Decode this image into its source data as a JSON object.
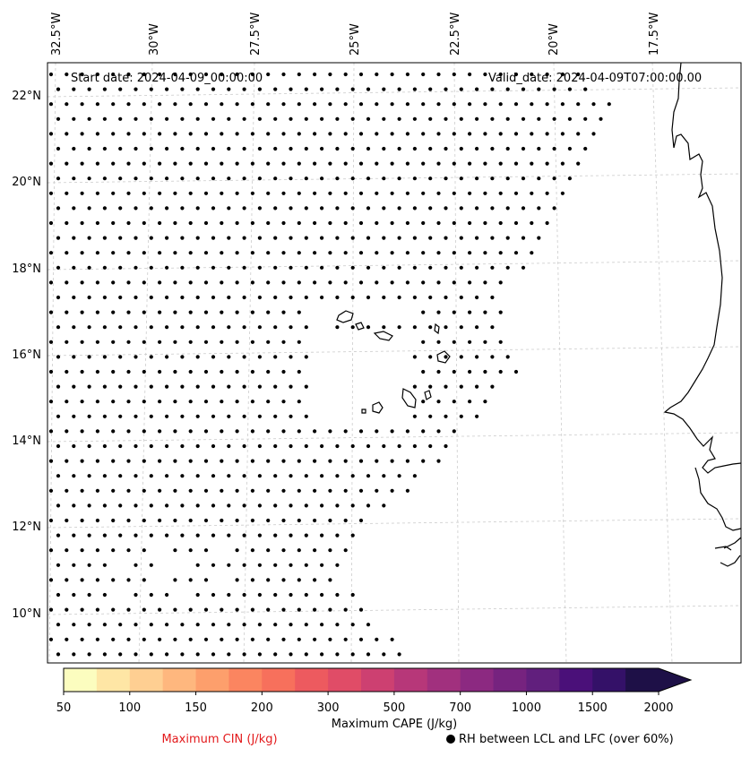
{
  "map": {
    "start_date_label": "Start date: 2024-04-09_00:00:00",
    "valid_date_label": "Valid_date: 2024-04-09T07:00:00.00",
    "lon_labels": [
      "32.5°W",
      "30°W",
      "27.5°W",
      "25°W",
      "22.5°W",
      "20°W",
      "17.5°W"
    ],
    "lat_labels": [
      "22°N",
      "20°N",
      "18°N",
      "16°N",
      "14°N",
      "12°N",
      "10°N"
    ],
    "coastline_color": "#000000",
    "gridline_color": "#cccccc",
    "rh_marker_color": "#000000"
  },
  "colorbar": {
    "title": "Maximum CAPE (J/kg)",
    "ticks": [
      "50",
      "100",
      "150",
      "200",
      "300",
      "500",
      "700",
      "1000",
      "1500",
      "2000"
    ],
    "colors": [
      "#fcfdbf",
      "#fee6a5",
      "#fecf92",
      "#feb77e",
      "#fd9f6c",
      "#fb8560",
      "#f7705c",
      "#ed5a5f",
      "#e04c67",
      "#cd4071",
      "#b73779",
      "#a1307e",
      "#8c2981",
      "#76237f",
      "#611f7d",
      "#4a1079",
      "#341168",
      "#1e1047"
    ],
    "extend_color": "#1e1047"
  },
  "legend": {
    "cin_label": "Maximum CIN (J/kg)",
    "cin_color": "#e31a1c",
    "rh_label": "RH between LCL and LFC (over 60%)"
  }
}
